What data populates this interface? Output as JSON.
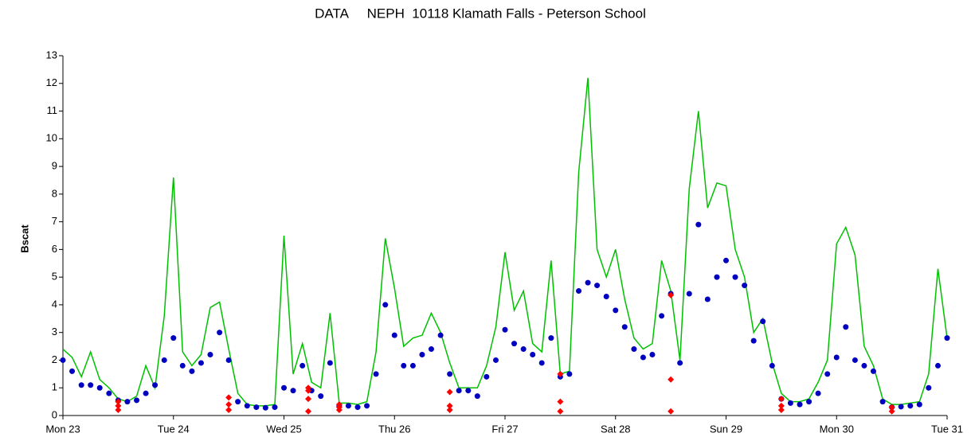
{
  "chart_data": {
    "type": "line",
    "title": "DATA     NEPH  10118 Klamath Falls - Peterson School",
    "y_label": "Bscat",
    "xlim": [
      0,
      8
    ],
    "xticks": [
      {
        "value": 0,
        "label": "Mon 23"
      },
      {
        "value": 1,
        "label": "Tue 24"
      },
      {
        "value": 2,
        "label": "Wed 25"
      },
      {
        "value": 3,
        "label": "Thu 26"
      },
      {
        "value": 4,
        "label": "Fri 27"
      },
      {
        "value": 5,
        "label": "Sat 28"
      },
      {
        "value": 6,
        "label": "Sun 29"
      },
      {
        "value": 7,
        "label": "Mon 30"
      },
      {
        "value": 8,
        "label": "Tue 31"
      }
    ],
    "ylim": [
      0,
      13
    ],
    "yticks": [
      0,
      1,
      2,
      3,
      4,
      5,
      6,
      7,
      8,
      9,
      10,
      11,
      12,
      13
    ],
    "x": [
      0,
      0.083,
      0.167,
      0.25,
      0.333,
      0.417,
      0.5,
      0.583,
      0.667,
      0.75,
      0.833,
      0.917,
      1,
      1.083,
      1.167,
      1.25,
      1.333,
      1.417,
      1.5,
      1.583,
      1.667,
      1.75,
      1.833,
      1.917,
      2,
      2.083,
      2.167,
      2.25,
      2.333,
      2.417,
      2.5,
      2.583,
      2.667,
      2.75,
      2.833,
      2.917,
      3,
      3.083,
      3.167,
      3.25,
      3.333,
      3.417,
      3.5,
      3.583,
      3.667,
      3.75,
      3.833,
      3.917,
      4,
      4.083,
      4.167,
      4.25,
      4.333,
      4.417,
      4.5,
      4.583,
      4.667,
      4.75,
      4.833,
      4.917,
      5,
      5.083,
      5.167,
      5.25,
      5.333,
      5.417,
      5.5,
      5.583,
      5.667,
      5.75,
      5.833,
      5.917,
      6,
      6.083,
      6.167,
      6.25,
      6.333,
      6.417,
      6.5,
      6.583,
      6.667,
      6.75,
      6.833,
      6.917,
      7,
      7.083,
      7.167,
      7.25,
      7.333,
      7.417,
      7.5,
      7.583,
      7.667,
      7.75,
      7.833,
      7.917,
      8
    ],
    "series": [
      {
        "color": "#00c000",
        "style": "line",
        "values": [
          2.4,
          2.1,
          1.4,
          2.3,
          1.3,
          1.0,
          0.6,
          0.5,
          0.7,
          1.8,
          1.0,
          3.6,
          8.6,
          2.3,
          1.8,
          2.2,
          3.9,
          4.1,
          2.4,
          0.8,
          0.4,
          0.35,
          0.35,
          0.4,
          6.5,
          1.5,
          2.6,
          1.2,
          1.0,
          3.7,
          0.45,
          0.45,
          0.4,
          0.5,
          2.3,
          6.4,
          4.6,
          2.5,
          2.8,
          2.9,
          3.7,
          3.0,
          1.9,
          1.0,
          1.0,
          1.0,
          1.8,
          3.2,
          5.9,
          3.8,
          4.5,
          2.6,
          2.3,
          5.6,
          1.5,
          1.6,
          8.8,
          12.2,
          6.0,
          5.0,
          6.0,
          4.2,
          2.8,
          2.4,
          2.6,
          5.6,
          4.5,
          2.0,
          8.2,
          11.0,
          7.5,
          8.4,
          8.3,
          6.0,
          5.0,
          3.0,
          3.5,
          1.9,
          0.8,
          0.5,
          0.5,
          0.6,
          1.2,
          2.0,
          6.2,
          6.8,
          5.8,
          2.5,
          1.8,
          0.6,
          0.4,
          0.4,
          0.45,
          0.5,
          1.5,
          5.3,
          2.8
        ]
      },
      {
        "color": "#0000c0",
        "style": "dots",
        "values": [
          2.0,
          1.6,
          1.1,
          1.1,
          1.0,
          0.8,
          0.55,
          0.5,
          0.55,
          0.8,
          1.1,
          2.0,
          2.8,
          1.8,
          1.6,
          1.9,
          2.2,
          3.0,
          2.0,
          0.5,
          0.35,
          0.3,
          0.28,
          0.3,
          1.0,
          0.9,
          1.8,
          0.9,
          0.7,
          1.9,
          0.35,
          0.35,
          0.3,
          0.35,
          1.5,
          4.0,
          2.9,
          1.8,
          1.8,
          2.2,
          2.4,
          2.9,
          1.5,
          0.9,
          0.9,
          0.7,
          1.4,
          2.0,
          3.1,
          2.6,
          2.4,
          2.2,
          1.9,
          2.8,
          1.4,
          1.5,
          4.5,
          4.8,
          4.7,
          4.3,
          3.8,
          3.2,
          2.4,
          2.1,
          2.2,
          3.6,
          4.4,
          1.9,
          4.4,
          6.9,
          4.2,
          5.0,
          5.6,
          5.0,
          4.7,
          2.7,
          3.4,
          1.8,
          0.6,
          0.45,
          0.4,
          0.5,
          0.8,
          1.5,
          2.1,
          3.2,
          2.0,
          1.8,
          1.6,
          0.5,
          0.3,
          0.32,
          0.35,
          0.4,
          1.0,
          1.8,
          2.8
        ]
      }
    ],
    "markers": {
      "color": "#ff0000",
      "x": [
        0.5,
        0.5,
        0.5,
        1.5,
        1.5,
        1.5,
        2.22,
        2.22,
        2.22,
        2.22,
        2.5,
        2.5,
        2.5,
        3.5,
        3.5,
        3.5,
        4.5,
        4.5,
        4.5,
        5.5,
        5.5,
        5.5,
        6.5,
        6.5,
        6.5,
        7.5,
        7.5
      ],
      "values": [
        0.2,
        0.35,
        0.5,
        0.2,
        0.4,
        0.65,
        0.15,
        0.6,
        0.9,
        1.0,
        0.2,
        0.3,
        0.4,
        0.2,
        0.35,
        0.85,
        0.15,
        0.5,
        1.5,
        0.15,
        1.3,
        4.35,
        0.2,
        0.35,
        0.6,
        0.15,
        0.3
      ]
    }
  }
}
